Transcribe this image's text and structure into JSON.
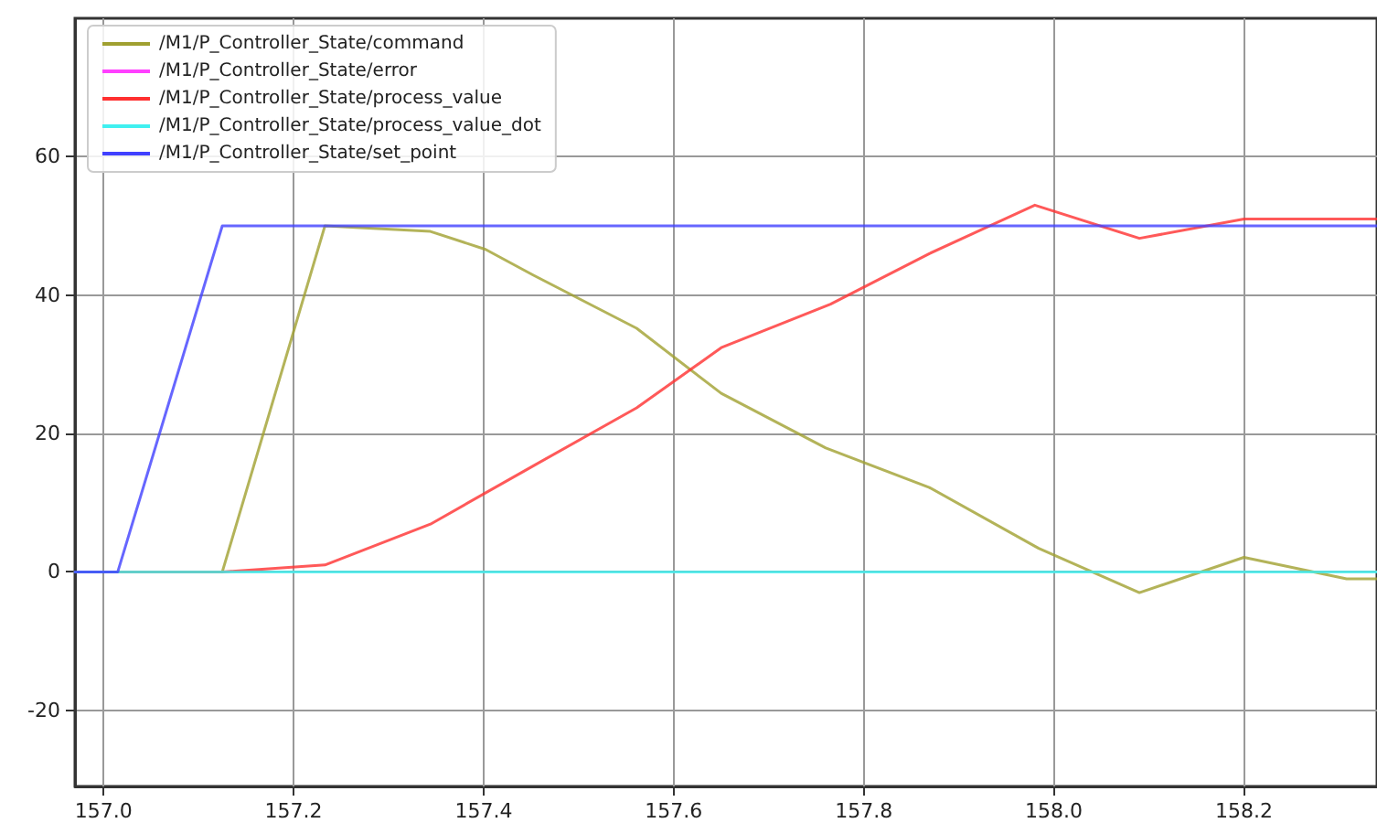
{
  "chart_data": {
    "type": "line",
    "xlim": [
      156.97,
      158.34
    ],
    "ylim": [
      -31,
      80
    ],
    "xticks": [
      {
        "value": 157,
        "label": "157.0"
      },
      157.2,
      157.4,
      157.6,
      157.8,
      {
        "value": 158,
        "label": "158.0"
      },
      158.2
    ],
    "yticks": [
      -20,
      0,
      20,
      40,
      60
    ],
    "grid": true,
    "legend": "top left",
    "marker": "none",
    "line_style": "solid",
    "series": [
      {
        "name": "/M1/P_Controller_State/command",
        "color": "#a0a030",
        "x": [
          156.97,
          157.125,
          157.233,
          157.344,
          157.402,
          157.452,
          157.561,
          157.65,
          157.76,
          157.869,
          157.984,
          158.09,
          158.2,
          158.308,
          158.34
        ],
        "values": [
          0,
          0,
          50,
          49.2,
          46.6,
          42.9,
          35.2,
          25.8,
          17.9,
          12.2,
          3.4,
          -3,
          2.1,
          -1,
          -1
        ]
      },
      {
        "name": "/M1/P_Controller_State/error",
        "color": "#ff40ff"
      },
      {
        "name": "/M1/P_Controller_State/process_value",
        "color": "#ff3030",
        "x": [
          156.97,
          157.125,
          157.233,
          157.344,
          157.452,
          157.561,
          157.65,
          157.765,
          157.869,
          157.98,
          158.09,
          158.2,
          158.34
        ],
        "values": [
          0,
          0,
          1,
          6.9,
          15.3,
          23.7,
          32.4,
          38.7,
          46,
          53,
          48.2,
          51,
          51
        ]
      },
      {
        "name": "/M1/P_Controller_State/process_value_dot",
        "color": "#40f0f0",
        "x": [
          156.97,
          158.34
        ],
        "values": [
          0,
          0
        ]
      },
      {
        "name": "/M1/P_Controller_State/set_point",
        "color": "#4040ff",
        "x": [
          156.97,
          157.015,
          157.125,
          158.34
        ],
        "values": [
          0,
          0,
          50,
          50
        ]
      }
    ]
  }
}
